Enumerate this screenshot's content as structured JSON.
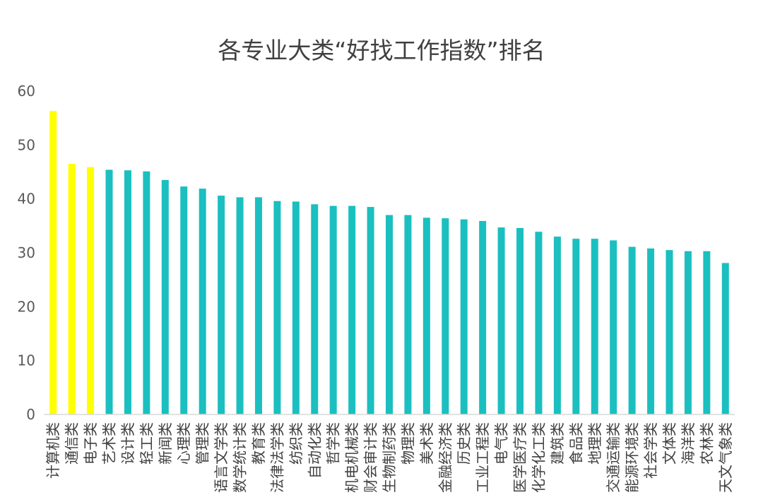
{
  "chart_data": {
    "type": "bar",
    "title": "各专业大类“好找工作指数”排名",
    "xlabel": "",
    "ylabel": "",
    "ylim": [
      0,
      60
    ],
    "yticks": [
      0,
      10,
      20,
      30,
      40,
      50,
      60
    ],
    "grid": false,
    "legend": "none",
    "colors": {
      "highlight": "#FFFF00",
      "normal": "#1BBFBF",
      "axis": "#D9D9D9"
    },
    "categories": [
      "计算机类",
      "通信类",
      "电子类",
      "艺术类",
      "设计类",
      "轻工类",
      "新闻类",
      "心理类",
      "管理类",
      "语言文学类",
      "数学统计类",
      "教育类",
      "法律法学类",
      "纺织类",
      "自动化类",
      "哲学类",
      "机电机械类",
      "财会审计类",
      "生物制药类",
      "物理类",
      "美术类",
      "金融经济类",
      "历史类",
      "工业工程类",
      "电气类",
      "医学医疗类",
      "化学化工类",
      "建筑类",
      "食品类",
      "地理类",
      "交通运输类",
      "能源环境类",
      "社会学类",
      "文体类",
      "海洋类",
      "农林类",
      "天文气象类"
    ],
    "values": [
      56.3,
      46.5,
      45.9,
      45.4,
      45.3,
      45.1,
      43.5,
      42.3,
      41.9,
      40.6,
      40.3,
      40.3,
      39.6,
      39.5,
      39.0,
      38.7,
      38.7,
      38.5,
      37.0,
      37.0,
      36.5,
      36.4,
      36.2,
      35.9,
      34.7,
      34.6,
      33.9,
      33.0,
      32.6,
      32.6,
      32.3,
      31.1,
      30.8,
      30.5,
      30.3,
      30.3,
      28.1
    ],
    "highlight_count": 3
  }
}
